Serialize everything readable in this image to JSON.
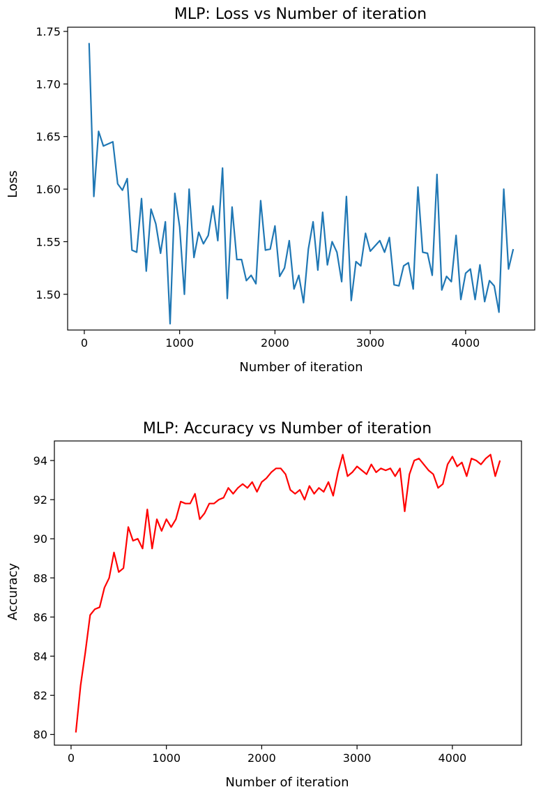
{
  "chart_data": [
    {
      "type": "line",
      "title": "MLP: Loss vs Number of iteration",
      "xlabel": "Number of iteration",
      "ylabel": "Loss",
      "xlim": [
        -175,
        4725
      ],
      "ylim": [
        1.466,
        1.754
      ],
      "xticks": [
        0,
        1000,
        2000,
        3000,
        4000
      ],
      "xtick_labels": [
        "0",
        "1000",
        "2000",
        "3000",
        "4000"
      ],
      "yticks": [
        1.5,
        1.55,
        1.6,
        1.65,
        1.7,
        1.75
      ],
      "ytick_labels": [
        "1.50",
        "1.55",
        "1.60",
        "1.65",
        "1.70",
        "1.75"
      ],
      "grid": false,
      "series": [
        {
          "color": "#1f77b4",
          "x": [
            50,
            100,
            150,
            200,
            250,
            300,
            350,
            400,
            450,
            500,
            550,
            600,
            650,
            700,
            750,
            800,
            850,
            900,
            950,
            1000,
            1050,
            1100,
            1150,
            1200,
            1250,
            1300,
            1350,
            1400,
            1450,
            1500,
            1550,
            1600,
            1650,
            1700,
            1750,
            1800,
            1850,
            1900,
            1950,
            2000,
            2050,
            2100,
            2150,
            2200,
            2250,
            2300,
            2350,
            2400,
            2450,
            2500,
            2550,
            2600,
            2650,
            2700,
            2750,
            2800,
            2850,
            2900,
            2950,
            3000,
            3050,
            3100,
            3150,
            3200,
            3250,
            3300,
            3350,
            3400,
            3450,
            3500,
            3550,
            3600,
            3650,
            3700,
            3750,
            3800,
            3850,
            3900,
            3950,
            4000,
            4050,
            4100,
            4150,
            4200,
            4250,
            4300,
            4350,
            4400,
            4450,
            4500
          ],
          "values": [
            1.739,
            1.593,
            1.655,
            1.641,
            1.643,
            1.645,
            1.605,
            1.599,
            1.61,
            1.542,
            1.54,
            1.591,
            1.522,
            1.581,
            1.567,
            1.539,
            1.569,
            1.472,
            1.596,
            1.564,
            1.5,
            1.6,
            1.535,
            1.559,
            1.548,
            1.556,
            1.584,
            1.551,
            1.62,
            1.496,
            1.583,
            1.533,
            1.533,
            1.513,
            1.518,
            1.51,
            1.589,
            1.542,
            1.543,
            1.565,
            1.517,
            1.525,
            1.551,
            1.505,
            1.518,
            1.492,
            1.543,
            1.569,
            1.523,
            1.578,
            1.528,
            1.55,
            1.54,
            1.512,
            1.593,
            1.494,
            1.531,
            1.527,
            1.558,
            1.541,
            1.546,
            1.551,
            1.54,
            1.554,
            1.509,
            1.508,
            1.527,
            1.53,
            1.505,
            1.602,
            1.54,
            1.539,
            1.518,
            1.614,
            1.504,
            1.517,
            1.512,
            1.556,
            1.495,
            1.52,
            1.524,
            1.495,
            1.528,
            1.493,
            1.513,
            1.508,
            1.483,
            1.6,
            1.524,
            1.543
          ]
        }
      ]
    },
    {
      "type": "line",
      "title": "MLP: Accuracy vs Number of iteration",
      "xlabel": "Number of iteration",
      "ylabel": "Accuracy",
      "xlim": [
        -175,
        4725
      ],
      "ylim": [
        79.45,
        95.0
      ],
      "xticks": [
        0,
        1000,
        2000,
        3000,
        4000
      ],
      "xtick_labels": [
        "0",
        "1000",
        "2000",
        "3000",
        "4000"
      ],
      "yticks": [
        80,
        82,
        84,
        86,
        88,
        90,
        92,
        94
      ],
      "ytick_labels": [
        "80",
        "82",
        "84",
        "86",
        "88",
        "90",
        "92",
        "94"
      ],
      "grid": false,
      "series": [
        {
          "color": "#ff0000",
          "x": [
            50,
            100,
            150,
            200,
            250,
            300,
            350,
            400,
            450,
            500,
            550,
            600,
            650,
            700,
            750,
            800,
            850,
            900,
            950,
            1000,
            1050,
            1100,
            1150,
            1200,
            1250,
            1300,
            1350,
            1400,
            1450,
            1500,
            1550,
            1600,
            1650,
            1700,
            1750,
            1800,
            1850,
            1900,
            1950,
            2000,
            2050,
            2100,
            2150,
            2200,
            2250,
            2300,
            2350,
            2400,
            2450,
            2500,
            2550,
            2600,
            2650,
            2700,
            2750,
            2800,
            2850,
            2900,
            2950,
            3000,
            3050,
            3100,
            3150,
            3200,
            3250,
            3300,
            3350,
            3400,
            3450,
            3500,
            3550,
            3600,
            3650,
            3700,
            3750,
            3800,
            3850,
            3900,
            3950,
            4000,
            4050,
            4100,
            4150,
            4200,
            4250,
            4300,
            4350,
            4400,
            4450,
            4500
          ],
          "values": [
            80.1,
            82.5,
            84.2,
            86.1,
            86.4,
            86.5,
            87.5,
            88.0,
            89.3,
            88.3,
            88.5,
            90.6,
            89.9,
            90.0,
            89.5,
            91.5,
            89.5,
            91.0,
            90.4,
            91.0,
            90.6,
            91.0,
            91.9,
            91.8,
            91.8,
            92.3,
            91.0,
            91.3,
            91.8,
            91.8,
            92.0,
            92.1,
            92.6,
            92.3,
            92.6,
            92.8,
            92.6,
            92.9,
            92.4,
            92.9,
            93.1,
            93.4,
            93.6,
            93.6,
            93.3,
            92.5,
            92.3,
            92.5,
            92.0,
            92.7,
            92.3,
            92.6,
            92.4,
            92.9,
            92.2,
            93.4,
            94.3,
            93.2,
            93.4,
            93.7,
            93.5,
            93.3,
            93.8,
            93.4,
            93.6,
            93.5,
            93.6,
            93.2,
            93.6,
            91.4,
            93.3,
            94.0,
            94.1,
            93.8,
            93.5,
            93.3,
            92.6,
            92.8,
            93.8,
            94.2,
            93.7,
            93.9,
            93.2,
            94.1,
            94.0,
            93.8,
            94.1,
            94.3,
            93.2,
            94.0
          ]
        }
      ]
    }
  ]
}
